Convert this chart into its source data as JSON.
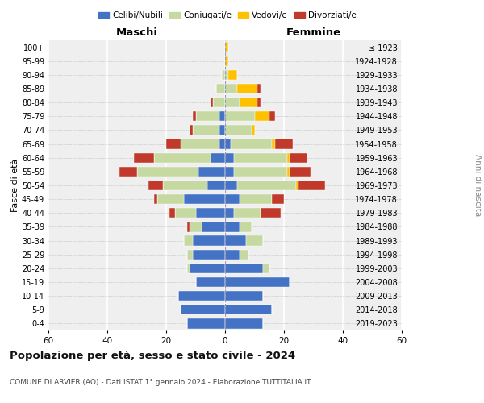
{
  "age_groups": [
    "0-4",
    "5-9",
    "10-14",
    "15-19",
    "20-24",
    "25-29",
    "30-34",
    "35-39",
    "40-44",
    "45-49",
    "50-54",
    "55-59",
    "60-64",
    "65-69",
    "70-74",
    "75-79",
    "80-84",
    "85-89",
    "90-94",
    "95-99",
    "100+"
  ],
  "birth_years": [
    "2019-2023",
    "2014-2018",
    "2009-2013",
    "2004-2008",
    "1999-2003",
    "1994-1998",
    "1989-1993",
    "1984-1988",
    "1979-1983",
    "1974-1978",
    "1969-1973",
    "1964-1968",
    "1959-1963",
    "1954-1958",
    "1949-1953",
    "1944-1948",
    "1939-1943",
    "1934-1938",
    "1929-1933",
    "1924-1928",
    "≤ 1923"
  ],
  "maschi": {
    "celibi": [
      13,
      15,
      16,
      10,
      12,
      11,
      11,
      8,
      10,
      14,
      6,
      9,
      5,
      2,
      2,
      2,
      0,
      0,
      0,
      0,
      0
    ],
    "coniugati": [
      0,
      0,
      0,
      0,
      1,
      2,
      3,
      4,
      7,
      9,
      15,
      21,
      19,
      13,
      9,
      8,
      4,
      3,
      1,
      0,
      0
    ],
    "vedovi": [
      0,
      0,
      0,
      0,
      0,
      0,
      0,
      0,
      0,
      0,
      0,
      0,
      0,
      0,
      0,
      0,
      0,
      0,
      0,
      0,
      0
    ],
    "divorziati": [
      0,
      0,
      0,
      0,
      0,
      0,
      0,
      1,
      2,
      1,
      5,
      6,
      7,
      5,
      1,
      1,
      1,
      0,
      0,
      0,
      0
    ]
  },
  "femmine": {
    "nubili": [
      13,
      16,
      13,
      22,
      13,
      5,
      7,
      5,
      3,
      5,
      4,
      3,
      3,
      2,
      0,
      0,
      0,
      0,
      0,
      0,
      0
    ],
    "coniugate": [
      0,
      0,
      0,
      0,
      2,
      3,
      6,
      4,
      9,
      11,
      20,
      18,
      18,
      14,
      9,
      10,
      5,
      4,
      1,
      0,
      0
    ],
    "vedove": [
      0,
      0,
      0,
      0,
      0,
      0,
      0,
      0,
      0,
      0,
      1,
      1,
      1,
      1,
      1,
      5,
      6,
      7,
      3,
      1,
      1
    ],
    "divorziate": [
      0,
      0,
      0,
      0,
      0,
      0,
      0,
      0,
      7,
      4,
      9,
      7,
      6,
      6,
      0,
      2,
      1,
      1,
      0,
      0,
      0
    ]
  },
  "colors": {
    "celibi": "#4472c4",
    "coniugati": "#c5d9a0",
    "vedovi": "#ffc000",
    "divorziati": "#c0392b"
  },
  "xlim": 60,
  "title": "Popolazione per età, sesso e stato civile - 2024",
  "subtitle": "COMUNE DI ARVIER (AO) - Dati ISTAT 1° gennaio 2024 - Elaborazione TUTTITALIA.IT",
  "xlabel_left": "Maschi",
  "xlabel_right": "Femmine",
  "ylabel_left": "Fasce di età",
  "ylabel_right": "Anni di nascita",
  "legend_labels": [
    "Celibi/Nubili",
    "Coniugati/e",
    "Vedovi/e",
    "Divorziati/e"
  ],
  "background_color": "#ffffff",
  "plot_bg_color": "#efefef"
}
